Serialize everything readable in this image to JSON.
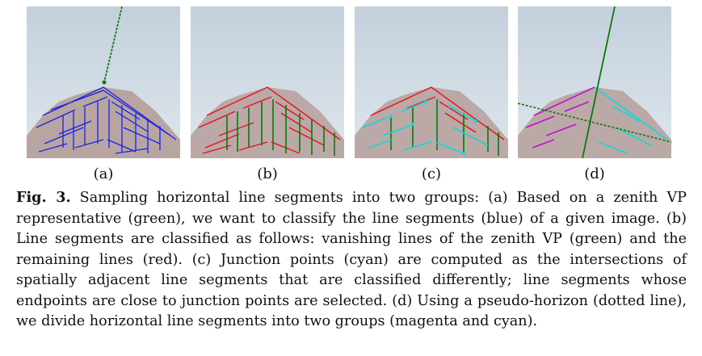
{
  "figure": {
    "panels": [
      {
        "label": "(a)",
        "lines": "blue",
        "vp": "green"
      },
      {
        "label": "(b)",
        "lines": "red+green"
      },
      {
        "label": "(c)",
        "lines": "red+green+cyan"
      },
      {
        "label": "(d)",
        "lines": "magenta+cyan",
        "horizon": "green-dotted"
      }
    ],
    "caption": {
      "fig_label": "Fig. 3.",
      "text": " Sampling horizontal line segments into two groups: (a) Based on a zenith VP representative (green), we want to classify the line segments (blue) of a given image. (b) Line segments are classified as follows: vanishing lines of the zenith VP (green) and the remaining lines (red). (c) Junction points (cyan) are computed as the intersections of spatially adjacent line segments that are classified differently; line segments whose endpoints are close to junction points are selected. (d) Using a pseudo-horizon (dotted line), we divide horizontal line segments into two groups (magenta and cyan)."
    }
  },
  "colors": {
    "blue": "#1a22e6",
    "red": "#e8101a",
    "green": "#0a7a0a",
    "cyan": "#10d8d8",
    "magenta": "#c010c8"
  }
}
